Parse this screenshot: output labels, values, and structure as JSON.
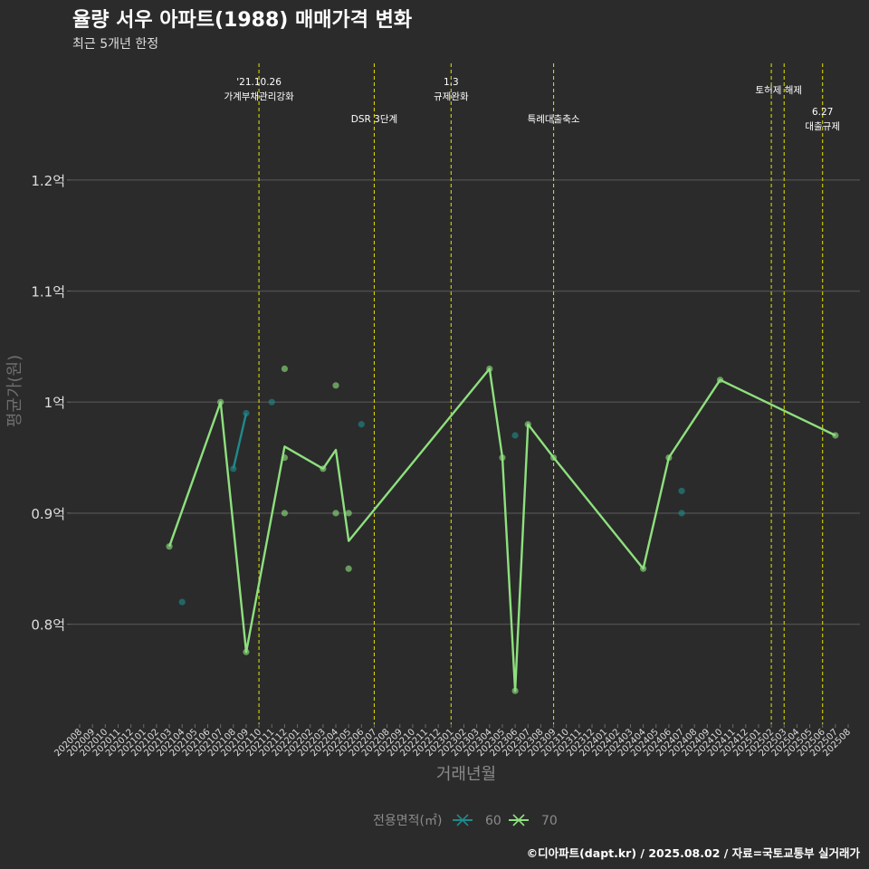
{
  "chart_data": {
    "type": "line",
    "title": "율량 서우 아파트(1988) 매매가격 변화",
    "subtitle": "최근 5개년 한정",
    "xlabel": "거래년월",
    "ylabel": "평균가(원)",
    "ylim": [
      0.71,
      1.305
    ],
    "yticks": [
      {
        "value": 0.8,
        "label": "0.8억"
      },
      {
        "value": 0.9,
        "label": "0.9억"
      },
      {
        "value": 1.0,
        "label": "1억"
      },
      {
        "value": 1.1,
        "label": "1.1억"
      },
      {
        "value": 1.2,
        "label": "1.2억"
      }
    ],
    "months": [
      "202008",
      "202009",
      "202010",
      "202011",
      "202012",
      "202101",
      "202102",
      "202103",
      "202104",
      "202105",
      "202106",
      "202107",
      "202108",
      "202109",
      "202110",
      "202111",
      "202112",
      "202201",
      "202202",
      "202203",
      "202204",
      "202205",
      "202206",
      "202207",
      "202208",
      "202209",
      "202210",
      "202211",
      "202212",
      "202301",
      "202302",
      "202303",
      "202304",
      "202305",
      "202306",
      "202307",
      "202308",
      "202309",
      "202310",
      "202311",
      "202312",
      "202401",
      "202402",
      "202403",
      "202404",
      "202405",
      "202406",
      "202407",
      "202408",
      "202409",
      "202410",
      "202411",
      "202412",
      "202501",
      "202502",
      "202503",
      "202504",
      "202505",
      "202506",
      "202507",
      "202508"
    ],
    "events": [
      {
        "x": 14.0,
        "label": "'21.10.26\n가계부채관리강화",
        "level": 1
      },
      {
        "x": 23.0,
        "label": "DSR 3단계",
        "level": 2
      },
      {
        "x": 29.0,
        "label": "1.3\n규제완화",
        "level": 1
      },
      {
        "x": 37.0,
        "label": "특례대출축소",
        "level": 2
      },
      {
        "x": 54.0,
        "label": "",
        "level": 0
      },
      {
        "x": 55.0,
        "label": "토허제 해제",
        "level": 3
      },
      {
        "x": 58.0,
        "label": "6.27\n대출규제",
        "level": 4
      }
    ],
    "legend": {
      "title": "전용면적(㎡)",
      "position": "bottom"
    },
    "series": [
      {
        "name": "60",
        "color": "#1f8a8a",
        "line": [
          [
            12.0,
            0.94
          ],
          [
            13.0,
            0.99
          ]
        ],
        "points": [
          [
            8.0,
            0.82
          ],
          [
            12.0,
            0.94
          ],
          [
            13.0,
            0.99
          ],
          [
            15.0,
            1.0
          ],
          [
            22.0,
            0.98
          ],
          [
            34.0,
            0.97
          ],
          [
            47.0,
            0.92
          ],
          [
            47.0,
            0.9
          ]
        ]
      },
      {
        "name": "70",
        "color": "#8ee07e",
        "line": [
          [
            7.0,
            0.87
          ],
          [
            11.0,
            1.0
          ],
          [
            13.0,
            0.775
          ],
          [
            16.0,
            0.96
          ],
          [
            19.0,
            0.94
          ],
          [
            20.0,
            0.957
          ],
          [
            21.0,
            0.875
          ],
          [
            32.0,
            1.03
          ],
          [
            33.0,
            0.95
          ],
          [
            34.0,
            0.74
          ],
          [
            35.0,
            0.98
          ],
          [
            37.0,
            0.95
          ],
          [
            44.0,
            0.85
          ],
          [
            46.0,
            0.95
          ],
          [
            50.0,
            1.02
          ],
          [
            59.0,
            0.97
          ]
        ],
        "points": [
          [
            7.0,
            0.87
          ],
          [
            11.0,
            1.0
          ],
          [
            13.0,
            0.775
          ],
          [
            16.0,
            1.03
          ],
          [
            16.0,
            0.95
          ],
          [
            16.0,
            0.9
          ],
          [
            19.0,
            0.94
          ],
          [
            20.0,
            1.015
          ],
          [
            20.0,
            0.9
          ],
          [
            21.0,
            0.9
          ],
          [
            21.0,
            0.85
          ],
          [
            32.0,
            1.03
          ],
          [
            33.0,
            0.95
          ],
          [
            34.0,
            0.74
          ],
          [
            35.0,
            0.98
          ],
          [
            37.0,
            0.95
          ],
          [
            44.0,
            0.85
          ],
          [
            46.0,
            0.95
          ],
          [
            50.0,
            1.02
          ],
          [
            59.0,
            0.97
          ]
        ]
      }
    ]
  },
  "caption": "©디아파트(dapt.kr) / 2025.08.02 / 자료=국토교통부 실거래가",
  "colors": {
    "background": "#2b2b2b",
    "grid": "#4a4a4a",
    "event_line": "#d4d400",
    "text": "#ffffff",
    "muted": "#8a8a8a"
  }
}
